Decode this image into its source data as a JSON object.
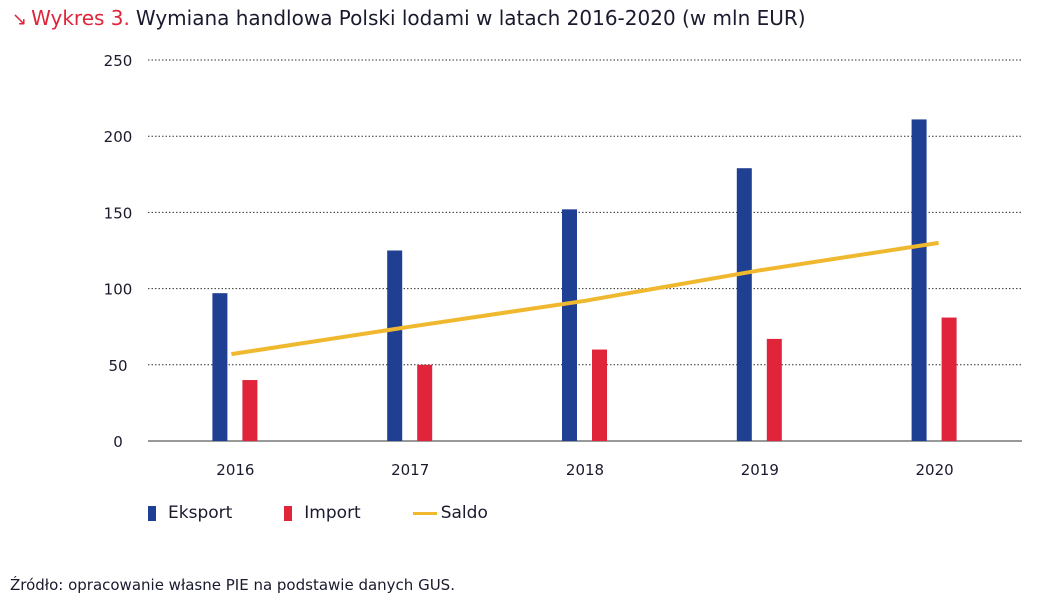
{
  "header": {
    "arrow": "↘",
    "label": "Wykres 3.",
    "title": "Wymiana handlowa Polski lodami w latach 2016-2020 (w mln EUR)"
  },
  "chart_data": {
    "type": "bar",
    "categories": [
      "2016",
      "2017",
      "2018",
      "2019",
      "2020"
    ],
    "series": [
      {
        "name": "Eksport",
        "type": "bar",
        "color": "#1f3f93",
        "values": [
          97,
          125,
          152,
          179,
          211
        ]
      },
      {
        "name": "Import",
        "type": "bar",
        "color": "#e0243a",
        "values": [
          40,
          50,
          60,
          67,
          81
        ]
      },
      {
        "name": "Saldo",
        "type": "line",
        "color": "#f0b82e",
        "values": [
          57,
          75,
          92,
          112,
          130
        ]
      }
    ],
    "ylim": [
      0,
      250
    ],
    "yticks": [
      0,
      50,
      100,
      150,
      200,
      250
    ],
    "grid": true,
    "legend_position": "bottom-left"
  },
  "source": "Źródło: opracowanie własne PIE na podstawie danych GUS."
}
